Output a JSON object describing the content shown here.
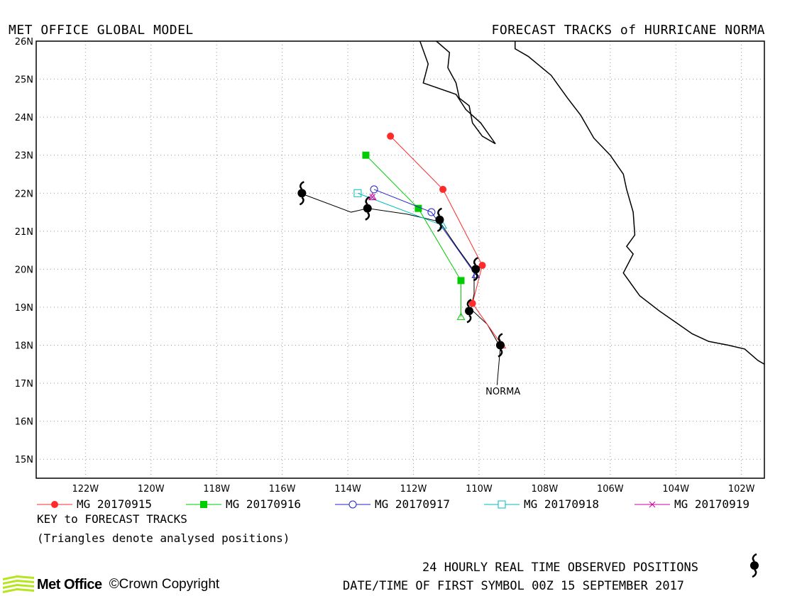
{
  "header": {
    "left": "MET OFFICE GLOBAL MODEL",
    "right": "FORECAST TRACKS of HURRICANE NORMA"
  },
  "legend_items": [
    {
      "label": "MG 20170915",
      "color": "#ff2a2a",
      "marker": "filled-circle"
    },
    {
      "label": "MG 20170916",
      "color": "#00cc00",
      "marker": "filled-square"
    },
    {
      "label": "MG 20170917",
      "color": "#2222cc",
      "marker": "open-circle"
    },
    {
      "label": "MG 20170918",
      "color": "#00bbbb",
      "marker": "open-square"
    },
    {
      "label": "MG 20170919",
      "color": "#cc0099",
      "marker": "cross"
    }
  ],
  "key": {
    "title": "KEY to FORECAST TRACKS",
    "note": "(Triangles denote analysed positions)"
  },
  "footer": {
    "observed": "24 HOURLY REAL TIME OBSERVED POSITIONS",
    "datetime": "DATE/TIME OF FIRST SYMBOL 00Z 15 SEPTEMBER 2017",
    "logo": "Met Office",
    "copyright": "©Crown Copyright"
  },
  "chart_data": {
    "type": "map-track",
    "xlim": [
      -123.5,
      -101.3
    ],
    "ylim": [
      14.5,
      26
    ],
    "x_ticks": [
      -122,
      -120,
      -118,
      -116,
      -114,
      -112,
      -110,
      -108,
      -106,
      -104,
      -102
    ],
    "x_tick_labels": [
      "122W",
      "120W",
      "118W",
      "116W",
      "114W",
      "112W",
      "110W",
      "108W",
      "106W",
      "104W",
      "102W"
    ],
    "y_ticks": [
      15,
      16,
      17,
      18,
      19,
      20,
      21,
      22,
      23,
      24,
      25,
      26
    ],
    "y_tick_labels": [
      "15N",
      "16N",
      "17N",
      "18N",
      "19N",
      "20N",
      "21N",
      "22N",
      "23N",
      "24N",
      "25N",
      "26N"
    ],
    "grid": true,
    "storm_label": "NORMA",
    "storm_label_pos": [
      -109.8,
      16.7
    ],
    "observed": {
      "name": "Observed",
      "color": "#000000",
      "line": [
        [
          -109.45,
          16.95
        ],
        [
          -109.35,
          17.95
        ],
        [
          -109.75,
          18.55
        ],
        [
          -110.25,
          18.95
        ],
        [
          -110.15,
          19.35
        ],
        [
          -110.15,
          19.95
        ],
        [
          -110.65,
          20.55
        ],
        [
          -111.2,
          21.25
        ],
        [
          -112.2,
          21.45
        ],
        [
          -113.4,
          21.6
        ],
        [
          -113.9,
          21.5
        ],
        [
          -115.45,
          22.0
        ]
      ],
      "positions": [
        [
          -109.35,
          18.0
        ],
        [
          -110.3,
          18.9
        ],
        [
          -110.1,
          20.0
        ],
        [
          -111.2,
          21.3
        ],
        [
          -113.4,
          21.6
        ],
        [
          -115.4,
          22.0
        ]
      ]
    },
    "series": [
      {
        "name": "MG 20170915",
        "color": "#ff2a2a",
        "marker": "filled-circle",
        "analysed": [
          -109.3,
          18.0
        ],
        "points": [
          [
            -109.3,
            18.0
          ],
          [
            -110.2,
            19.1
          ],
          [
            -109.9,
            20.1
          ],
          [
            -111.1,
            22.1
          ],
          [
            -112.7,
            23.5
          ]
        ]
      },
      {
        "name": "MG 20170916",
        "color": "#00cc00",
        "marker": "filled-square",
        "analysed": [
          -110.55,
          18.75
        ],
        "points": [
          [
            -110.55,
            18.75
          ],
          [
            -110.55,
            19.7
          ],
          [
            -111.85,
            21.6
          ],
          [
            -113.45,
            23.0
          ]
        ]
      },
      {
        "name": "MG 20170917",
        "color": "#2222cc",
        "marker": "open-circle",
        "analysed": [
          -110.1,
          19.85
        ],
        "points": [
          [
            -110.1,
            19.85
          ],
          [
            -111.45,
            21.5
          ],
          [
            -113.2,
            22.1
          ]
        ]
      },
      {
        "name": "MG 20170918",
        "color": "#00bbbb",
        "marker": "open-square",
        "analysed": [
          -111.1,
          21.15
        ],
        "points": [
          [
            -111.1,
            21.15
          ],
          [
            -113.7,
            22.0
          ]
        ]
      },
      {
        "name": "MG 20170919",
        "color": "#cc0099",
        "marker": "cross",
        "analysed": [
          -113.25,
          21.9
        ],
        "points": [
          [
            -113.25,
            21.9
          ]
        ]
      }
    ],
    "coastlines": [
      [
        [
          -111.8,
          26.0
        ],
        [
          -111.55,
          25.4
        ],
        [
          -111.7,
          24.9
        ],
        [
          -110.7,
          24.6
        ],
        [
          -110.4,
          24.2
        ],
        [
          -109.95,
          23.85
        ],
        [
          -109.5,
          23.3
        ],
        [
          -109.9,
          23.5
        ],
        [
          -110.2,
          23.85
        ],
        [
          -110.3,
          24.3
        ],
        [
          -110.6,
          24.5
        ],
        [
          -110.7,
          24.9
        ],
        [
          -110.95,
          25.3
        ],
        [
          -110.9,
          25.7
        ],
        [
          -111.3,
          26.0
        ]
      ],
      [
        [
          -108.9,
          26.0
        ],
        [
          -108.9,
          25.8
        ],
        [
          -108.5,
          25.6
        ],
        [
          -107.8,
          25.1
        ],
        [
          -107.3,
          24.5
        ],
        [
          -106.9,
          24.05
        ],
        [
          -106.5,
          23.45
        ],
        [
          -106.0,
          23.0
        ],
        [
          -105.6,
          22.5
        ],
        [
          -105.5,
          22.1
        ],
        [
          -105.3,
          21.5
        ],
        [
          -105.25,
          20.9
        ],
        [
          -105.5,
          20.6
        ],
        [
          -105.3,
          20.4
        ],
        [
          -105.6,
          19.9
        ],
        [
          -105.1,
          19.3
        ],
        [
          -104.5,
          18.9
        ],
        [
          -104.0,
          18.6
        ],
        [
          -103.5,
          18.3
        ],
        [
          -103.0,
          18.1
        ],
        [
          -102.4,
          18.0
        ],
        [
          -101.9,
          17.9
        ],
        [
          -101.5,
          17.6
        ],
        [
          -101.3,
          17.5
        ]
      ]
    ]
  }
}
